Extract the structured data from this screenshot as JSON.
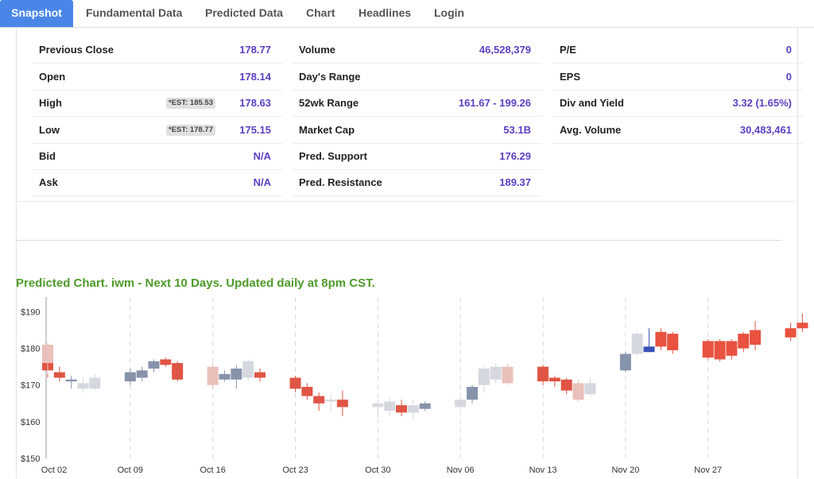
{
  "tabs": [
    "Snapshot",
    "Fundamental Data",
    "Predicted Data",
    "Chart",
    "Headlines",
    "Login"
  ],
  "snapshot": {
    "col1": [
      {
        "label": "Previous Close",
        "value": "178.77",
        "est": ""
      },
      {
        "label": "Open",
        "value": "178.14",
        "est": ""
      },
      {
        "label": "High",
        "value": "178.63",
        "est": "*EST: 185.53"
      },
      {
        "label": "Low",
        "value": "175.15",
        "est": "*EST: 178.77"
      },
      {
        "label": "Bid",
        "value": "N/A",
        "est": ""
      },
      {
        "label": "Ask",
        "value": "N/A",
        "est": ""
      }
    ],
    "col2": [
      {
        "label": "Volume",
        "value": "46,528,379"
      },
      {
        "label": "Day's Range",
        "value": ""
      },
      {
        "label": "52wk Range",
        "value": "161.67 - 199.26"
      },
      {
        "label": "Market Cap",
        "value": "53.1B"
      },
      {
        "label": "Pred. Support",
        "value": "176.29"
      },
      {
        "label": "Pred. Resistance",
        "value": "189.37"
      }
    ],
    "col3": [
      {
        "label": "P/E",
        "value": "0"
      },
      {
        "label": "EPS",
        "value": "0"
      },
      {
        "label": "Div and Yield",
        "value": "3.32 (1.65%)"
      },
      {
        "label": "Avg. Volume",
        "value": "30,483,461"
      }
    ]
  },
  "chart_title": "Predicted Chart. iwm - Next 10 Days. Updated daily at 8pm CST.",
  "chart_data": {
    "type": "candlestick",
    "y_ticks": [
      "$150",
      "$160",
      "$170",
      "$180",
      "$190"
    ],
    "ylim": [
      150,
      194
    ],
    "x_ticks": [
      "Oct 02",
      "Oct 09",
      "Oct 16",
      "Oct 23",
      "Oct 30",
      "Nov 06",
      "Nov 13",
      "Nov 20",
      "Nov 27"
    ],
    "colors": {
      "up": "#8793ab",
      "down": "#e05545",
      "up_faded": "#d5d8df",
      "down_faded": "#eac0bb",
      "today": "#3a4fb8",
      "prediction": "#e8523f"
    },
    "candles": [
      {
        "date": "Oct 02",
        "o": 178.0,
        "h": 181.5,
        "l": 172.0,
        "c": 174.0,
        "kind": "down"
      },
      {
        "date": "Oct 02",
        "o": 181.0,
        "h": 181.5,
        "l": 173.0,
        "c": 176.0,
        "kind": "down_faded"
      },
      {
        "date": "Oct 03",
        "o": 173.5,
        "h": 175.0,
        "l": 171.0,
        "c": 172.0,
        "kind": "down"
      },
      {
        "date": "Oct 04",
        "o": 171.0,
        "h": 172.5,
        "l": 169.0,
        "c": 171.5,
        "kind": "up"
      },
      {
        "date": "Oct 05",
        "o": 169.0,
        "h": 172.0,
        "l": 168.0,
        "c": 170.5,
        "kind": "up_faded"
      },
      {
        "date": "Oct 06",
        "o": 169.0,
        "h": 173.0,
        "l": 168.5,
        "c": 172.0,
        "kind": "up_faded"
      },
      {
        "date": "Oct 09",
        "o": 171.0,
        "h": 174.5,
        "l": 170.0,
        "c": 173.5,
        "kind": "up"
      },
      {
        "date": "Oct 10",
        "o": 172.0,
        "h": 175.0,
        "l": 171.0,
        "c": 174.0,
        "kind": "up"
      },
      {
        "date": "Oct 11",
        "o": 174.5,
        "h": 177.0,
        "l": 173.5,
        "c": 176.5,
        "kind": "up"
      },
      {
        "date": "Oct 12",
        "o": 177.0,
        "h": 177.5,
        "l": 175.0,
        "c": 175.5,
        "kind": "down"
      },
      {
        "date": "Oct 13",
        "o": 176.0,
        "h": 176.5,
        "l": 172.0,
        "c": 173.0,
        "kind": "down"
      },
      {
        "date": "Oct 13",
        "o": 174.0,
        "h": 176.0,
        "l": 171.0,
        "c": 171.5,
        "kind": "down"
      },
      {
        "date": "Oct 16",
        "o": 175.0,
        "h": 176.0,
        "l": 169.0,
        "c": 170.0,
        "kind": "down_faded"
      },
      {
        "date": "Oct 17",
        "o": 171.5,
        "h": 174.0,
        "l": 171.0,
        "c": 173.0,
        "kind": "up"
      },
      {
        "date": "Oct 18",
        "o": 171.5,
        "h": 175.5,
        "l": 169.0,
        "c": 174.5,
        "kind": "up"
      },
      {
        "date": "Oct 19",
        "o": 172.0,
        "h": 177.0,
        "l": 171.0,
        "c": 176.5,
        "kind": "up_faded"
      },
      {
        "date": "Oct 20",
        "o": 173.5,
        "h": 174.5,
        "l": 171.0,
        "c": 172.0,
        "kind": "down"
      },
      {
        "date": "Oct 23",
        "o": 172.0,
        "h": 172.5,
        "l": 168.0,
        "c": 169.0,
        "kind": "down"
      },
      {
        "date": "Oct 24",
        "o": 169.5,
        "h": 170.5,
        "l": 166.0,
        "c": 167.0,
        "kind": "down"
      },
      {
        "date": "Oct 25",
        "o": 167.0,
        "h": 168.0,
        "l": 163.0,
        "c": 165.0,
        "kind": "down"
      },
      {
        "date": "Oct 26",
        "o": 165.5,
        "h": 167.5,
        "l": 162.5,
        "c": 166.0,
        "kind": "up_faded"
      },
      {
        "date": "Oct 27",
        "o": 166.0,
        "h": 168.5,
        "l": 161.5,
        "c": 164.0,
        "kind": "down"
      },
      {
        "date": "Oct 30",
        "o": 164.0,
        "h": 166.0,
        "l": 161.0,
        "c": 165.0,
        "kind": "up_faded"
      },
      {
        "date": "Oct 31",
        "o": 163.0,
        "h": 166.5,
        "l": 161.5,
        "c": 165.5,
        "kind": "up_faded"
      },
      {
        "date": "Nov 01",
        "o": 164.5,
        "h": 166.0,
        "l": 161.5,
        "c": 162.5,
        "kind": "down"
      },
      {
        "date": "Nov 02",
        "o": 162.5,
        "h": 166.0,
        "l": 160.5,
        "c": 164.5,
        "kind": "up_faded"
      },
      {
        "date": "Nov 03",
        "o": 163.5,
        "h": 165.5,
        "l": 163.0,
        "c": 165.0,
        "kind": "up"
      },
      {
        "date": "Nov 06",
        "o": 164.0,
        "h": 166.5,
        "l": 163.5,
        "c": 166.0,
        "kind": "up_faded"
      },
      {
        "date": "Nov 07",
        "o": 166.0,
        "h": 170.0,
        "l": 165.0,
        "c": 169.5,
        "kind": "up"
      },
      {
        "date": "Nov 08",
        "o": 170.0,
        "h": 175.0,
        "l": 168.0,
        "c": 174.5,
        "kind": "up_faded"
      },
      {
        "date": "Nov 09",
        "o": 171.5,
        "h": 176.0,
        "l": 170.5,
        "c": 175.0,
        "kind": "up_faded"
      },
      {
        "date": "Nov 10",
        "o": 175.0,
        "h": 176.0,
        "l": 170.0,
        "c": 170.5,
        "kind": "down_faded"
      },
      {
        "date": "Nov 13",
        "o": 175.0,
        "h": 175.5,
        "l": 170.0,
        "c": 171.0,
        "kind": "down"
      },
      {
        "date": "Nov 14",
        "o": 172.0,
        "h": 172.5,
        "l": 169.5,
        "c": 171.0,
        "kind": "down"
      },
      {
        "date": "Nov 15",
        "o": 171.5,
        "h": 172.0,
        "l": 167.5,
        "c": 168.5,
        "kind": "down"
      },
      {
        "date": "Nov 16",
        "o": 170.5,
        "h": 171.5,
        "l": 165.5,
        "c": 166.0,
        "kind": "down_faded"
      },
      {
        "date": "Nov 17",
        "o": 167.5,
        "h": 172.0,
        "l": 167.0,
        "c": 170.5,
        "kind": "up_faded"
      },
      {
        "date": "Nov 17",
        "o": 169.0,
        "h": 172.0,
        "l": 167.5,
        "c": 170.0,
        "kind": "up_faded"
      },
      {
        "date": "Nov 20",
        "o": 174.0,
        "h": 179.0,
        "l": 173.5,
        "c": 178.5,
        "kind": "up"
      },
      {
        "date": "Nov 21",
        "o": 178.5,
        "h": 184.5,
        "l": 178.0,
        "c": 184.0,
        "kind": "up_faded"
      },
      {
        "date": "Nov 22",
        "o": 179.0,
        "h": 185.5,
        "l": 179.0,
        "c": 180.5,
        "kind": "today"
      },
      {
        "date": "Nov 23",
        "o": 184.5,
        "h": 185.5,
        "l": 179.5,
        "c": 180.5,
        "kind": "prediction"
      },
      {
        "date": "Nov 24",
        "o": 184.0,
        "h": 184.5,
        "l": 178.5,
        "c": 179.5,
        "kind": "prediction"
      },
      {
        "date": "Nov 27",
        "o": 182.0,
        "h": 182.5,
        "l": 177.0,
        "c": 177.5,
        "kind": "prediction"
      },
      {
        "date": "Nov 28",
        "o": 182.0,
        "h": 182.5,
        "l": 176.5,
        "c": 177.0,
        "kind": "prediction"
      },
      {
        "date": "Nov 29",
        "o": 182.0,
        "h": 182.5,
        "l": 177.0,
        "c": 178.0,
        "kind": "prediction"
      },
      {
        "date": "Nov 30",
        "o": 184.0,
        "h": 184.5,
        "l": 179.0,
        "c": 180.0,
        "kind": "prediction"
      },
      {
        "date": "Dec 01",
        "o": 185.0,
        "h": 187.5,
        "l": 179.5,
        "c": 181.0,
        "kind": "prediction"
      },
      {
        "date": "Dec 04",
        "o": 185.5,
        "h": 187.0,
        "l": 182.0,
        "c": 183.0,
        "kind": "prediction"
      },
      {
        "date": "Dec 05",
        "o": 187.0,
        "h": 189.5,
        "l": 184.5,
        "c": 185.5,
        "kind": "prediction"
      }
    ]
  }
}
